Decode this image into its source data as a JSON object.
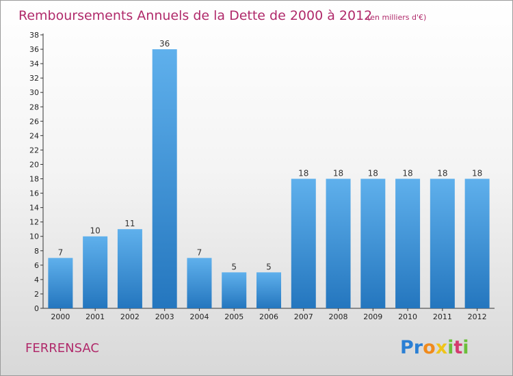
{
  "chart_data": {
    "type": "bar",
    "title": "Remboursements Annuels de la Dette de 2000 à 2012",
    "subtitle": "(en milliers d'€)",
    "categories": [
      "2000",
      "2001",
      "2002",
      "2003",
      "2004",
      "2005",
      "2006",
      "2007",
      "2008",
      "2009",
      "2010",
      "2011",
      "2012"
    ],
    "values": [
      7,
      10,
      11,
      36,
      7,
      5,
      5,
      18,
      18,
      18,
      18,
      18,
      18
    ],
    "ylim": [
      0,
      38
    ],
    "yticks": [
      0,
      2,
      4,
      6,
      8,
      10,
      12,
      14,
      16,
      18,
      20,
      22,
      24,
      26,
      28,
      30,
      32,
      34,
      36,
      38
    ],
    "grid": false,
    "bar_color": "#3d8fd6"
  },
  "commune": "FERRENSAC",
  "logo": {
    "letters": [
      "P",
      "r",
      "o",
      "x",
      "i",
      "t",
      "i"
    ],
    "colors": [
      "#2a7fd4",
      "#2a7fd4",
      "#f08a1c",
      "#f0c419",
      "#6bbf3a",
      "#d43a6f",
      "#6bbf3a"
    ]
  }
}
